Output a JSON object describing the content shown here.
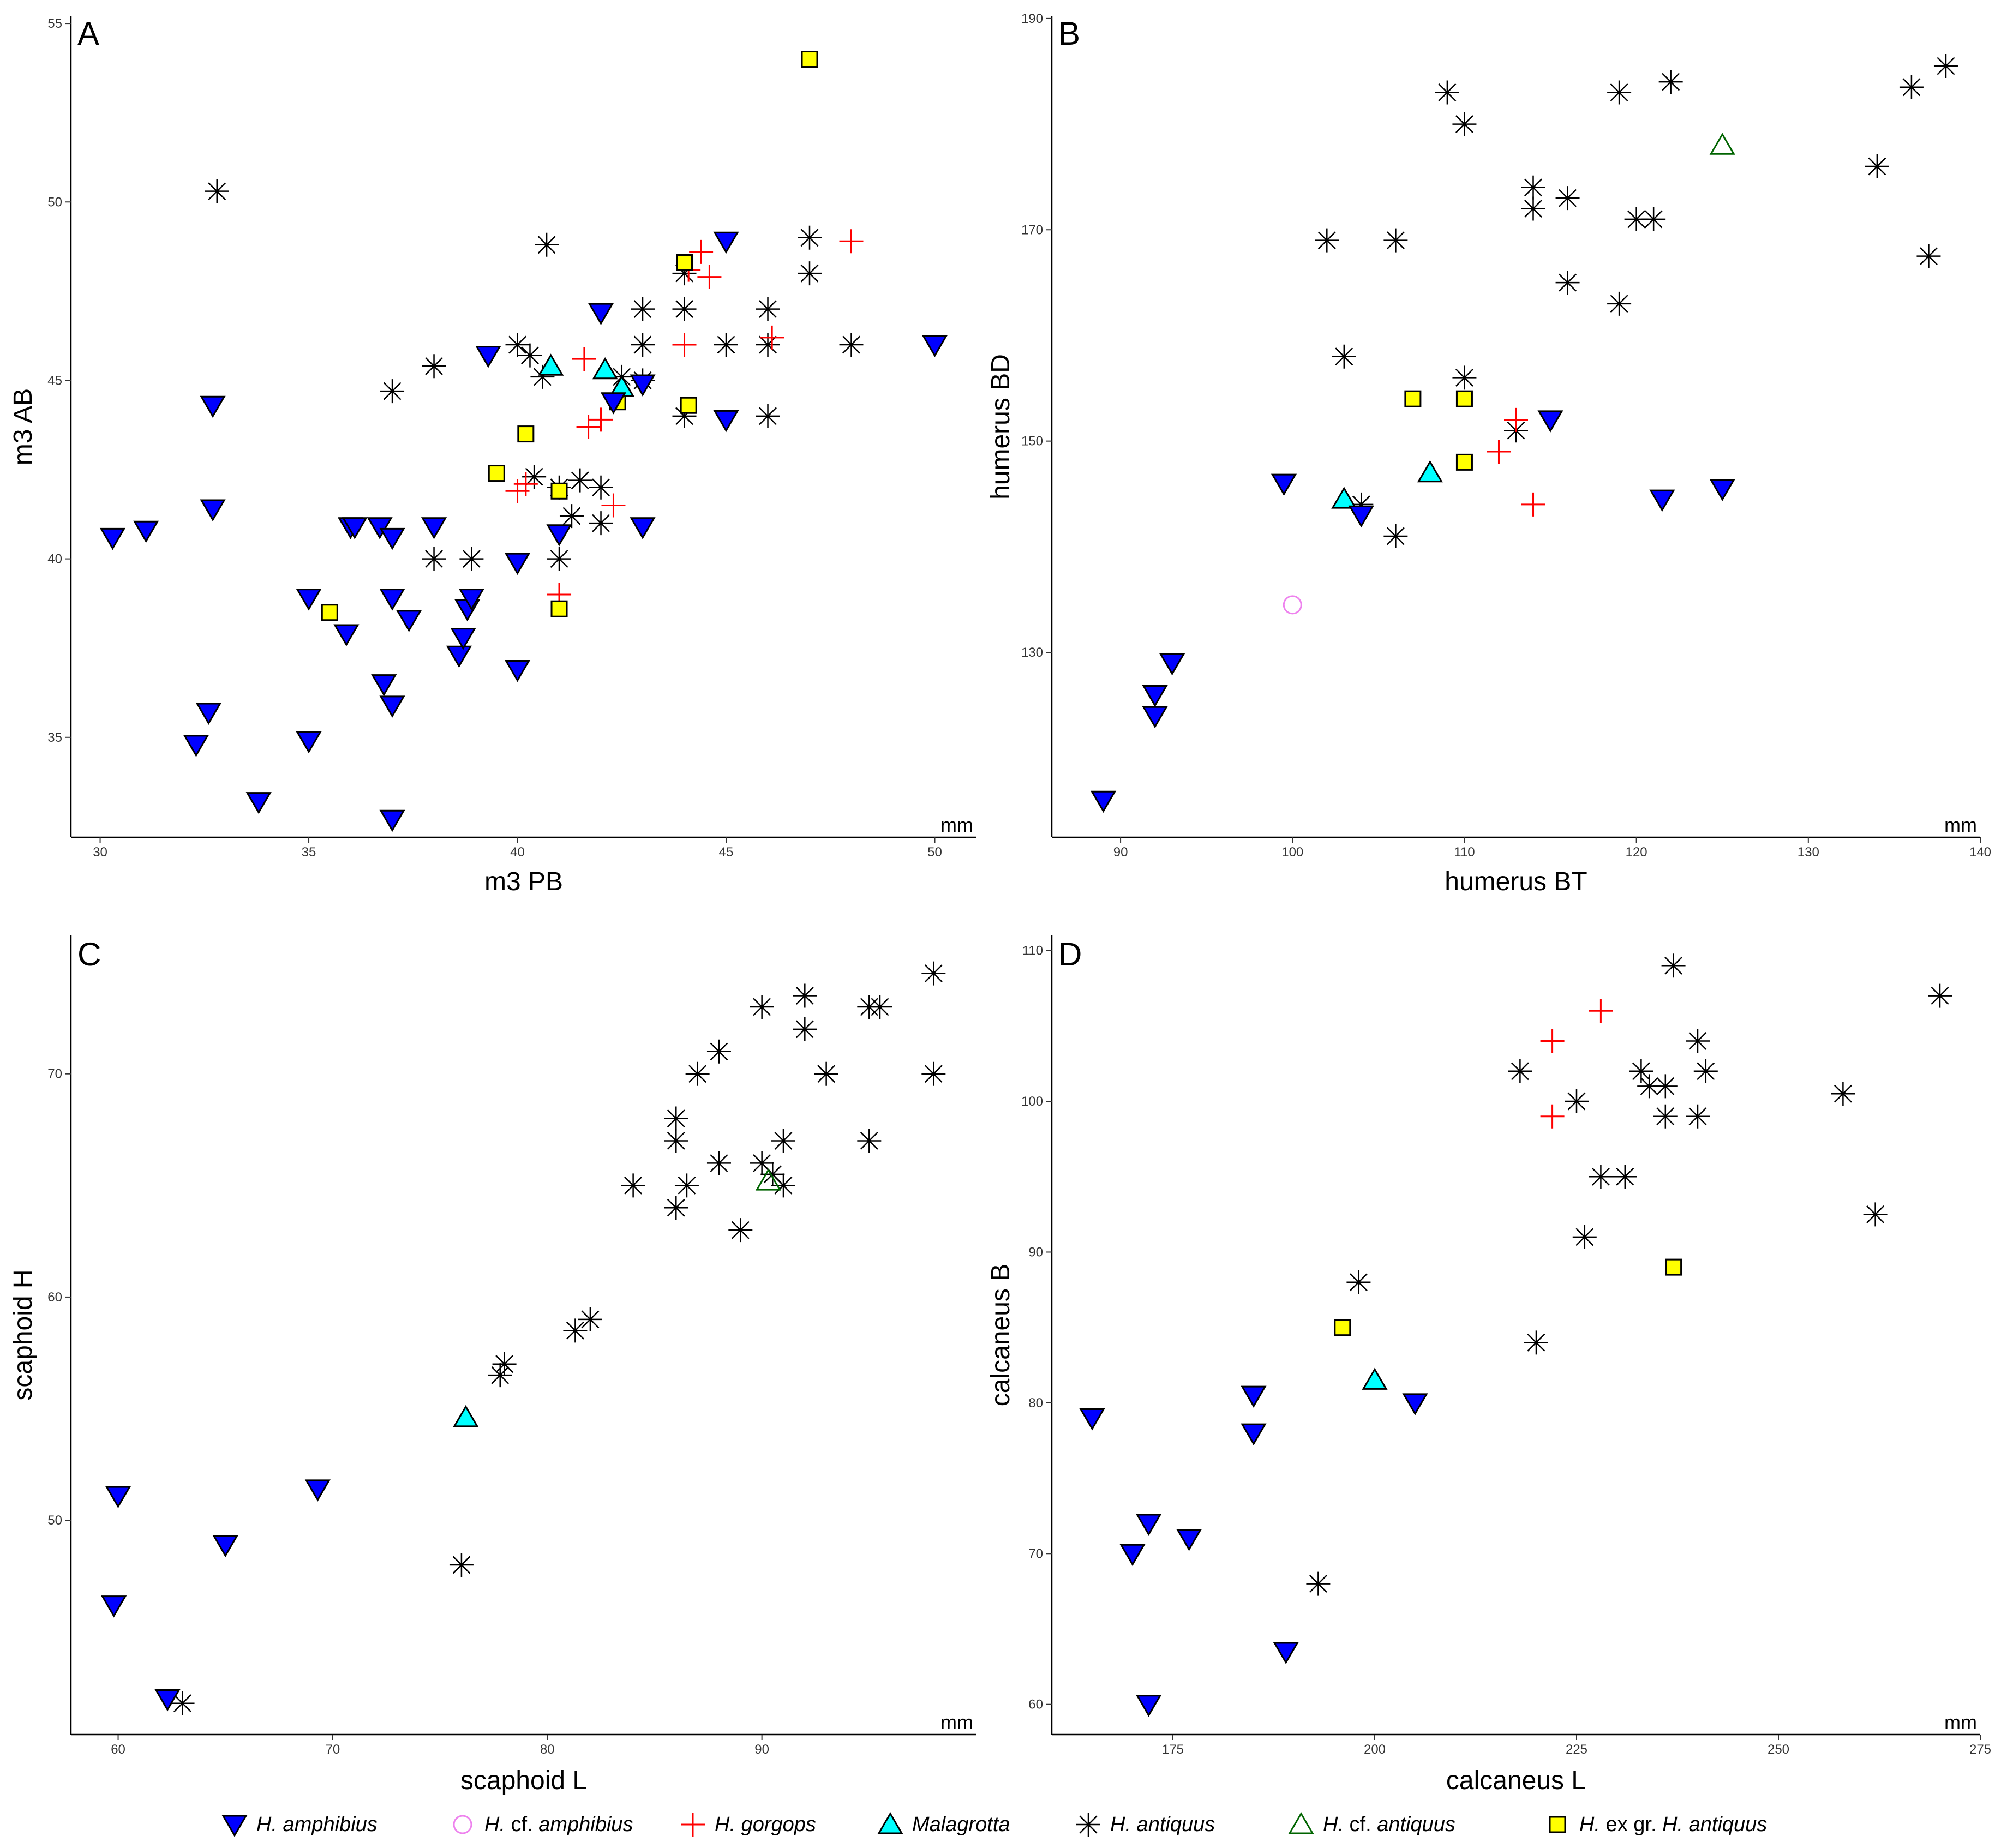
{
  "legend": [
    {
      "key": "amphibius",
      "name": "H. amphibius",
      "parts": [
        [
          "H. amphibius",
          true
        ]
      ]
    },
    {
      "key": "cf_amphibius",
      "name": "H. cf. amphibius",
      "parts": [
        [
          "H.",
          true
        ],
        [
          " cf. ",
          false
        ],
        [
          "amphibius",
          true
        ]
      ]
    },
    {
      "key": "gorgops",
      "name": "H. gorgops",
      "parts": [
        [
          "H. gorgops",
          true
        ]
      ]
    },
    {
      "key": "malagrotta",
      "name": "Malagrotta",
      "parts": [
        [
          "Malagrotta",
          true
        ]
      ]
    },
    {
      "key": "antiquus",
      "name": "H. antiquus",
      "parts": [
        [
          "H. antiquus",
          true
        ]
      ]
    },
    {
      "key": "cf_antiquus",
      "name": "H. cf. antiquus",
      "parts": [
        [
          "H.",
          true
        ],
        [
          " cf. ",
          false
        ],
        [
          "antiquus",
          true
        ]
      ]
    },
    {
      "key": "exgr",
      "name": "H. ex gr. H. antiquus",
      "parts": [
        [
          "H.",
          true
        ],
        [
          " ex gr. ",
          false
        ],
        [
          "H. antiquus",
          true
        ]
      ]
    }
  ],
  "colors": {
    "amphibius": "#0000ff",
    "cf_amphibius": "#ee82ee",
    "gorgops": "#ff0000",
    "malagrotta": "#00ffff",
    "antiquus": "#000000",
    "cf_antiquus": "#006400",
    "exgr": "#ffff00"
  },
  "chart_data": [
    {
      "panel": "A",
      "type": "scatter",
      "xlabel": "m3 PB",
      "ylabel": "m3 AB",
      "unit": "mm",
      "xlim": [
        29.3,
        51
      ],
      "ylim": [
        32.2,
        55.2
      ],
      "xticks": [
        30,
        35,
        40,
        45,
        50
      ],
      "yticks": [
        35,
        40,
        45,
        50,
        55
      ],
      "series": {
        "amphibius": [
          [
            30.3,
            40.6
          ],
          [
            31.1,
            40.8
          ],
          [
            32.7,
            44.3
          ],
          [
            32.7,
            41.4
          ],
          [
            32.3,
            34.8
          ],
          [
            32.6,
            35.7
          ],
          [
            33.8,
            33.2
          ],
          [
            35,
            38.9
          ],
          [
            35,
            34.9
          ],
          [
            35.9,
            37.9
          ],
          [
            36,
            40.9
          ],
          [
            36.1,
            40.9
          ],
          [
            36.7,
            40.9
          ],
          [
            37,
            40.6
          ],
          [
            37,
            38.9
          ],
          [
            37.4,
            38.3
          ],
          [
            36.8,
            36.5
          ],
          [
            37,
            35.9
          ],
          [
            37,
            32.7
          ],
          [
            38,
            40.9
          ],
          [
            38.6,
            37.3
          ],
          [
            38.7,
            37.8
          ],
          [
            38.8,
            38.6
          ],
          [
            38.9,
            38.9
          ],
          [
            39.3,
            45.7
          ],
          [
            40,
            39.9
          ],
          [
            40,
            36.9
          ],
          [
            41,
            40.7
          ],
          [
            42,
            46.9
          ],
          [
            42.3,
            44.4
          ],
          [
            43,
            44.9
          ],
          [
            43,
            40.9
          ],
          [
            45,
            48.9
          ],
          [
            45,
            43.9
          ],
          [
            50,
            46
          ]
        ],
        "cf_amphibius": [],
        "gorgops": [
          [
            40,
            41.9
          ],
          [
            40.2,
            42.1
          ],
          [
            41,
            39
          ],
          [
            41.6,
            45.6
          ],
          [
            41.7,
            43.7
          ],
          [
            42,
            43.9
          ],
          [
            42.3,
            41.5
          ],
          [
            44,
            46
          ],
          [
            44.1,
            48.1
          ],
          [
            44.4,
            48.6
          ],
          [
            44.6,
            47.9
          ],
          [
            46.1,
            46.2
          ],
          [
            48,
            48.9
          ]
        ],
        "malagrotta": [
          [
            40.8,
            45.4
          ],
          [
            42.1,
            45.3
          ],
          [
            42.5,
            44.8
          ]
        ],
        "antiquus": [
          [
            32.8,
            50.3
          ],
          [
            37,
            44.7
          ],
          [
            38,
            45.4
          ],
          [
            38,
            40
          ],
          [
            38.9,
            40
          ],
          [
            40,
            46
          ],
          [
            40.3,
            45.7
          ],
          [
            40.6,
            45.1
          ],
          [
            40.7,
            48.8
          ],
          [
            40.4,
            42.3
          ],
          [
            41,
            42
          ],
          [
            41,
            40
          ],
          [
            41.3,
            41.2
          ],
          [
            41.5,
            42.2
          ],
          [
            42,
            42
          ],
          [
            42,
            41
          ],
          [
            42.5,
            45.1
          ],
          [
            43,
            47
          ],
          [
            43,
            46
          ],
          [
            43,
            45
          ],
          [
            44,
            48
          ],
          [
            44,
            47
          ],
          [
            44,
            44
          ],
          [
            45,
            46
          ],
          [
            46,
            47
          ],
          [
            46,
            46
          ],
          [
            46,
            44
          ],
          [
            47,
            49
          ],
          [
            47,
            48
          ],
          [
            48,
            46
          ]
        ],
        "cf_antiquus": [],
        "exgr": [
          [
            35.5,
            38.5
          ],
          [
            39.5,
            42.4
          ],
          [
            40.2,
            43.5
          ],
          [
            41,
            41.9
          ],
          [
            41,
            38.6
          ],
          [
            42.4,
            44.4
          ],
          [
            44,
            48.3
          ],
          [
            44.1,
            44.3
          ],
          [
            47,
            54
          ]
        ]
      }
    },
    {
      "panel": "B",
      "type": "scatter",
      "xlabel": "humerus BT",
      "ylabel": "humerus BD",
      "unit": "mm",
      "xlim": [
        86,
        140
      ],
      "ylim": [
        112.5,
        190.2
      ],
      "xticks": [
        90,
        100,
        110,
        120,
        130,
        140
      ],
      "yticks": [
        130,
        150,
        170,
        190
      ],
      "series": {
        "amphibius": [
          [
            89,
            116
          ],
          [
            92,
            124
          ],
          [
            92,
            126
          ],
          [
            93,
            129
          ],
          [
            99.5,
            146
          ],
          [
            104,
            143
          ],
          [
            115,
            152
          ],
          [
            121.5,
            144.5
          ],
          [
            125,
            145.5
          ]
        ],
        "cf_amphibius": [
          [
            100,
            134.5
          ]
        ],
        "gorgops": [
          [
            112,
            149
          ],
          [
            113,
            152
          ],
          [
            114,
            144
          ]
        ],
        "malagrotta": [
          [
            103,
            144.5
          ],
          [
            108,
            147
          ]
        ],
        "antiquus": [
          [
            102,
            169
          ],
          [
            103,
            158
          ],
          [
            104,
            144
          ],
          [
            106,
            141
          ],
          [
            106,
            169
          ],
          [
            109,
            183
          ],
          [
            110,
            180
          ],
          [
            110,
            156
          ],
          [
            113,
            151
          ],
          [
            114,
            174
          ],
          [
            114,
            172
          ],
          [
            116,
            173
          ],
          [
            116,
            165
          ],
          [
            119,
            183
          ],
          [
            119,
            163
          ],
          [
            120,
            171
          ],
          [
            121,
            171
          ],
          [
            122,
            184
          ],
          [
            134,
            176
          ],
          [
            136,
            183.5
          ],
          [
            137,
            167.5
          ],
          [
            138,
            185.5
          ]
        ],
        "cf_antiquus": [
          [
            125,
            178
          ]
        ],
        "exgr": [
          [
            107,
            154
          ],
          [
            110,
            154
          ],
          [
            110,
            148
          ]
        ]
      }
    },
    {
      "panel": "C",
      "type": "scatter",
      "xlabel": "scaphoid L",
      "ylabel": "scaphoid H",
      "unit": "mm",
      "xlim": [
        57.8,
        100
      ],
      "ylim": [
        40.4,
        76.2
      ],
      "xticks": [
        60,
        70,
        80,
        90
      ],
      "yticks": [
        50,
        60,
        70
      ],
      "series": {
        "amphibius": [
          [
            59.8,
            46.2
          ],
          [
            60,
            51.1
          ],
          [
            62.3,
            42
          ],
          [
            65,
            48.9
          ],
          [
            69.3,
            51.4
          ]
        ],
        "cf_amphibius": [],
        "gorgops": [],
        "malagrotta": [
          [
            76.2,
            54.6
          ]
        ],
        "antiquus": [
          [
            63,
            41.8
          ],
          [
            76,
            48
          ],
          [
            78,
            57
          ],
          [
            77.8,
            56.5
          ],
          [
            81.3,
            58.5
          ],
          [
            82,
            59
          ],
          [
            84,
            65
          ],
          [
            86,
            68
          ],
          [
            86,
            67
          ],
          [
            86,
            64
          ],
          [
            86.5,
            65
          ],
          [
            87,
            70
          ],
          [
            88,
            71
          ],
          [
            88,
            66
          ],
          [
            89,
            63
          ],
          [
            90,
            73
          ],
          [
            90,
            66
          ],
          [
            90.5,
            65.5
          ],
          [
            91,
            67
          ],
          [
            91,
            65
          ],
          [
            92,
            73.5
          ],
          [
            92,
            72
          ],
          [
            93,
            70
          ],
          [
            95,
            73
          ],
          [
            95.5,
            73
          ],
          [
            95,
            67
          ],
          [
            98,
            74.5
          ],
          [
            98,
            70
          ]
        ],
        "cf_antiquus": [
          [
            90.3,
            65.2
          ]
        ],
        "exgr": []
      }
    },
    {
      "panel": "D",
      "type": "scatter",
      "xlabel": "calcaneus L",
      "ylabel": "calcaneus B",
      "unit": "mm",
      "xlim": [
        160,
        275
      ],
      "ylim": [
        58,
        111
      ],
      "xticks": [
        175,
        200,
        225,
        250,
        275
      ],
      "yticks": [
        60,
        70,
        80,
        90,
        100,
        110
      ],
      "series": {
        "amphibius": [
          [
            165,
            79
          ],
          [
            170,
            70
          ],
          [
            172,
            72
          ],
          [
            172,
            60
          ],
          [
            177,
            71
          ],
          [
            185,
            80.5
          ],
          [
            185,
            78
          ],
          [
            189,
            63.5
          ],
          [
            205,
            80
          ]
        ],
        "cf_amphibius": [],
        "gorgops": [
          [
            222,
            104
          ],
          [
            222,
            99
          ],
          [
            228,
            106
          ]
        ],
        "malagrotta": [
          [
            200,
            81.5
          ]
        ],
        "antiquus": [
          [
            193,
            68
          ],
          [
            198,
            88
          ],
          [
            218,
            102
          ],
          [
            220,
            84
          ],
          [
            225,
            100
          ],
          [
            226,
            91
          ],
          [
            228,
            95
          ],
          [
            231,
            95
          ],
          [
            233,
            102
          ],
          [
            234,
            101
          ],
          [
            236,
            101
          ],
          [
            236,
            99
          ],
          [
            237,
            109
          ],
          [
            240,
            104
          ],
          [
            240,
            99
          ],
          [
            241,
            102
          ],
          [
            258,
            100.5
          ],
          [
            262,
            92.5
          ],
          [
            270,
            107
          ]
        ],
        "cf_antiquus": [],
        "exgr": [
          [
            196,
            85
          ],
          [
            237,
            89
          ]
        ]
      }
    }
  ]
}
